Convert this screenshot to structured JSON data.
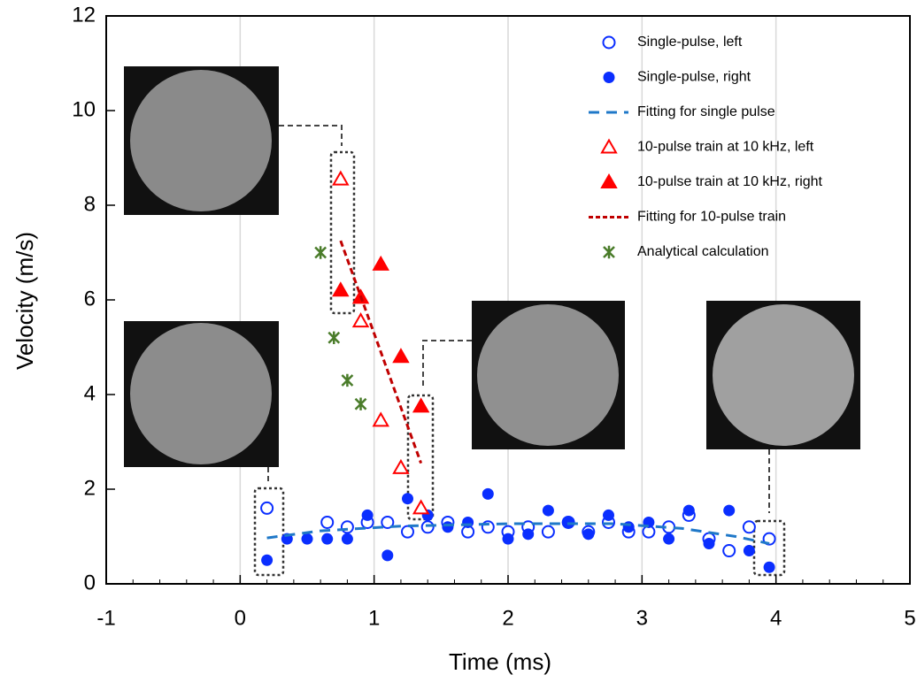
{
  "chart_data": {
    "type": "scatter",
    "x_label": "Time (ms)",
    "y_label": "Velocity (m/s)",
    "xlim": [
      -1,
      5
    ],
    "ylim": [
      0,
      12
    ],
    "xticks": [
      -1,
      0,
      1,
      2,
      3,
      4,
      5
    ],
    "yticks": [
      0,
      2,
      4,
      6,
      8,
      10,
      12
    ],
    "grid": "x",
    "legend": "upper right",
    "series": [
      {
        "name": "Single-pulse, left",
        "color": "#0a2eff",
        "marker": "circle-open",
        "x": [
          0.2,
          0.65,
          0.8,
          0.95,
          1.1,
          1.25,
          1.4,
          1.55,
          1.7,
          1.85,
          2.0,
          2.15,
          2.3,
          2.45,
          2.6,
          2.75,
          2.9,
          3.05,
          3.2,
          3.35,
          3.5,
          3.65,
          3.8,
          3.95
        ],
        "values": [
          1.6,
          1.3,
          1.2,
          1.3,
          1.3,
          1.1,
          1.2,
          1.3,
          1.1,
          1.2,
          1.1,
          1.2,
          1.1,
          1.3,
          1.1,
          1.3,
          1.1,
          1.1,
          1.2,
          1.45,
          0.95,
          0.7,
          1.2,
          0.95
        ]
      },
      {
        "name": "Single-pulse, right",
        "color": "#0a2eff",
        "marker": "circle",
        "x": [
          0.2,
          0.35,
          0.5,
          0.65,
          0.8,
          0.95,
          1.1,
          1.25,
          1.4,
          1.55,
          1.7,
          1.85,
          2.0,
          2.15,
          2.3,
          2.45,
          2.6,
          2.75,
          2.9,
          3.05,
          3.2,
          3.35,
          3.5,
          3.65,
          3.8,
          3.95
        ],
        "values": [
          0.5,
          0.95,
          0.95,
          0.95,
          0.95,
          1.45,
          0.6,
          1.8,
          1.45,
          1.2,
          1.3,
          1.9,
          0.95,
          1.05,
          1.55,
          1.3,
          1.05,
          1.45,
          1.2,
          1.3,
          0.95,
          1.55,
          0.85,
          1.55,
          0.7,
          0.35
        ]
      },
      {
        "name": "Fitting for single pulse",
        "color": "#1f78c8",
        "marker": "dash-line",
        "x": [
          0.2,
          0.6,
          1.2,
          2.0,
          2.8,
          3.3,
          3.7,
          3.95
        ],
        "values": [
          0.97,
          1.12,
          1.22,
          1.27,
          1.27,
          1.17,
          1.0,
          0.85
        ]
      },
      {
        "name": "10-pulse train at 10 kHz, left",
        "color": "#ff0000",
        "marker": "triangle-open",
        "x": [
          0.75,
          0.9,
          1.05,
          1.2,
          1.35
        ],
        "values": [
          8.55,
          5.55,
          3.45,
          2.45,
          1.6
        ]
      },
      {
        "name": "10-pulse train at 10 kHz, right",
        "color": "#ff0000",
        "marker": "triangle",
        "x": [
          0.75,
          0.9,
          1.05,
          1.2,
          1.35
        ],
        "values": [
          6.2,
          6.05,
          6.75,
          4.8,
          3.75
        ]
      },
      {
        "name": "Fitting for 10-pulse train",
        "color": "#c00000",
        "marker": "dash-line",
        "x": [
          0.75,
          1.35
        ],
        "values": [
          7.25,
          2.55
        ]
      },
      {
        "name": "Analytical calculation",
        "color": "#4a7c2a",
        "marker": "cross",
        "x": [
          0.6,
          0.7,
          0.8,
          0.9
        ],
        "values": [
          7.0,
          5.2,
          4.3,
          3.8
        ]
      }
    ]
  }
}
